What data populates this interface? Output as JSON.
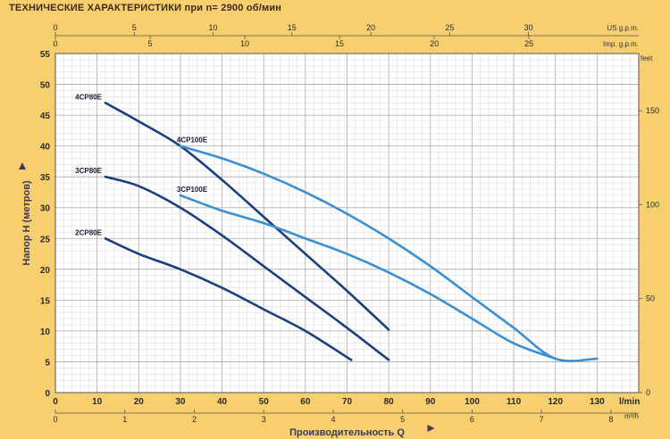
{
  "title": "ТЕХНИЧЕСКИЕ ХАРАКТЕРИСТИКИ при n= 2900 об/мин",
  "chart_data": {
    "type": "line",
    "title": "ТЕХНИЧЕСКИЕ ХАРАКТЕРИСТИКИ при n= 2900 об/мин",
    "xlabel": "Производительность Q",
    "ylabel": "Напор H (метров)",
    "x_unit": "l/min",
    "x_unit_m3h": "m³/h",
    "y_unit_right": "feet",
    "top_unit_us": "US g.p.m.",
    "top_unit_imp": "Imp. g.p.m.",
    "xlim": [
      0,
      140
    ],
    "ylim": [
      0,
      55
    ],
    "grid": true,
    "x_ticks": [
      0,
      10,
      20,
      30,
      40,
      50,
      60,
      70,
      80,
      90,
      100,
      110,
      120,
      130
    ],
    "y_ticks": [
      0,
      5,
      10,
      15,
      20,
      25,
      30,
      35,
      40,
      45,
      50,
      55
    ],
    "m3h_ticks": [
      0,
      1,
      2,
      3,
      4,
      5,
      6,
      7,
      8
    ],
    "us_gpm_ticks": [
      0,
      5,
      10,
      15,
      20,
      25,
      30
    ],
    "imp_gpm_ticks": [
      0,
      5,
      10,
      15,
      20,
      25
    ],
    "feet_ticks": [
      0,
      50,
      100,
      150
    ],
    "series": [
      {
        "name": "4CP80E",
        "color": "#1a3f7a",
        "x": [
          12,
          20,
          30,
          40,
          50,
          60,
          70,
          80
        ],
        "y": [
          47,
          44,
          40,
          34.5,
          28.5,
          22.5,
          16.5,
          10.2
        ]
      },
      {
        "name": "3CP80E",
        "color": "#1a3f7a",
        "x": [
          12,
          20,
          30,
          40,
          50,
          60,
          70,
          80
        ],
        "y": [
          35,
          33.5,
          30,
          25.5,
          20.5,
          15.5,
          10.5,
          5.3
        ]
      },
      {
        "name": "2CP80E",
        "color": "#1a3f7a",
        "x": [
          12,
          20,
          30,
          40,
          50,
          60,
          71
        ],
        "y": [
          25,
          22.5,
          20,
          17,
          13.5,
          10,
          5.3
        ]
      },
      {
        "name": "4CP100E",
        "color": "#3a8fd1",
        "x": [
          30,
          40,
          50,
          60,
          70,
          80,
          90,
          100,
          110,
          120,
          130
        ],
        "y": [
          40,
          38,
          35.5,
          32.5,
          29,
          25,
          20.5,
          15.5,
          10.5,
          5.5,
          5.5
        ]
      },
      {
        "name": "3CP100E",
        "color": "#3a8fd1",
        "x": [
          30,
          40,
          50,
          60,
          70,
          80,
          90,
          100,
          110,
          120
        ],
        "y": [
          32,
          29.5,
          27.5,
          25,
          22.5,
          19.5,
          16,
          12,
          8,
          5.5
        ]
      }
    ]
  }
}
